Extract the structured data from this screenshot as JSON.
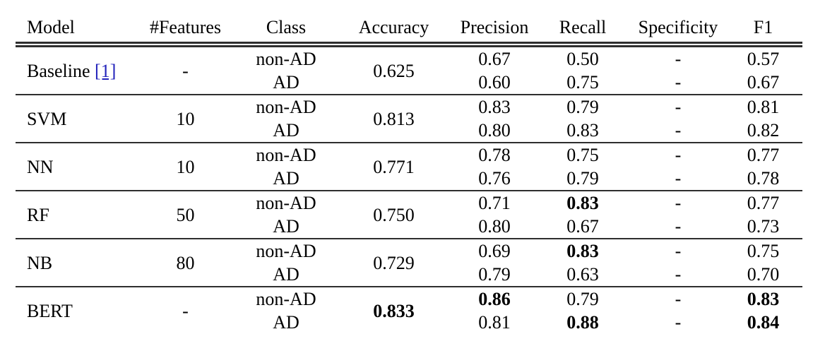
{
  "colors": {
    "background": "#ffffff",
    "text": "#000000",
    "rule": "#2e2e2e",
    "link": "#2323bb"
  },
  "table": {
    "headers": [
      {
        "key": "model",
        "label": "Model"
      },
      {
        "key": "features",
        "label": "#Features"
      },
      {
        "key": "class",
        "label": "Class"
      },
      {
        "key": "accuracy",
        "label": "Accuracy"
      },
      {
        "key": "precision",
        "label": "Precision"
      },
      {
        "key": "recall",
        "label": "Recall"
      },
      {
        "key": "specificity",
        "label": "Specificity"
      },
      {
        "key": "f1",
        "label": "F1"
      }
    ],
    "groups": [
      {
        "model": "Baseline",
        "citation": "[1]",
        "features": "-",
        "accuracy": "0.625",
        "accuracy_bold": false,
        "rows": [
          {
            "class": "non-AD",
            "precision": "0.67",
            "recall": "0.50",
            "specificity": "-",
            "f1": "0.57",
            "bold": []
          },
          {
            "class": "AD",
            "precision": "0.60",
            "recall": "0.75",
            "specificity": "-",
            "f1": "0.67",
            "bold": []
          }
        ]
      },
      {
        "model": "SVM",
        "citation": "",
        "features": "10",
        "accuracy": "0.813",
        "accuracy_bold": false,
        "rows": [
          {
            "class": "non-AD",
            "precision": "0.83",
            "recall": "0.79",
            "specificity": "-",
            "f1": "0.81",
            "bold": []
          },
          {
            "class": "AD",
            "precision": "0.80",
            "recall": "0.83",
            "specificity": "-",
            "f1": "0.82",
            "bold": []
          }
        ]
      },
      {
        "model": "NN",
        "citation": "",
        "features": "10",
        "accuracy": "0.771",
        "accuracy_bold": false,
        "rows": [
          {
            "class": "non-AD",
            "precision": "0.78",
            "recall": "0.75",
            "specificity": "-",
            "f1": "0.77",
            "bold": []
          },
          {
            "class": "AD",
            "precision": "0.76",
            "recall": "0.79",
            "specificity": "-",
            "f1": "0.78",
            "bold": []
          }
        ]
      },
      {
        "model": "RF",
        "citation": "",
        "features": "50",
        "accuracy": "0.750",
        "accuracy_bold": false,
        "rows": [
          {
            "class": "non-AD",
            "precision": "0.71",
            "recall": "0.83",
            "specificity": "-",
            "f1": "0.77",
            "bold": [
              "recall"
            ]
          },
          {
            "class": "AD",
            "precision": "0.80",
            "recall": "0.67",
            "specificity": "-",
            "f1": "0.73",
            "bold": []
          }
        ]
      },
      {
        "model": "NB",
        "citation": "",
        "features": "80",
        "accuracy": "0.729",
        "accuracy_bold": false,
        "rows": [
          {
            "class": "non-AD",
            "precision": "0.69",
            "recall": "0.83",
            "specificity": "-",
            "f1": "0.75",
            "bold": [
              "recall"
            ]
          },
          {
            "class": "AD",
            "precision": "0.79",
            "recall": "0.63",
            "specificity": "-",
            "f1": "0.70",
            "bold": []
          }
        ]
      },
      {
        "model": "BERT",
        "citation": "",
        "features": "-",
        "accuracy": "0.833",
        "accuracy_bold": true,
        "rows": [
          {
            "class": "non-AD",
            "precision": "0.86",
            "recall": "0.79",
            "specificity": "-",
            "f1": "0.83",
            "bold": [
              "precision",
              "f1"
            ]
          },
          {
            "class": "AD",
            "precision": "0.81",
            "recall": "0.88",
            "specificity": "-",
            "f1": "0.84",
            "bold": [
              "recall",
              "f1"
            ]
          }
        ]
      }
    ]
  }
}
